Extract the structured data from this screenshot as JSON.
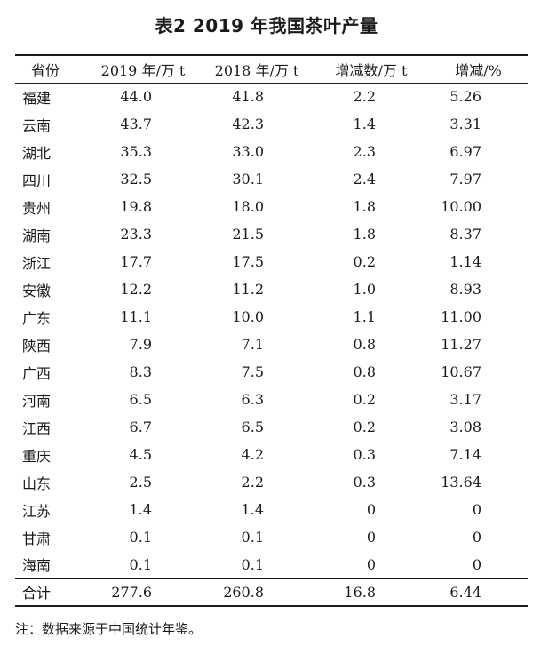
{
  "caption": "表2  2019 年我国茶叶产量",
  "headers": {
    "province": "省份",
    "y2019": "2019 年/万 t",
    "y2018": "2018 年/万 t",
    "diff": "增减数/万 t",
    "pct": "增减/%"
  },
  "rows": [
    {
      "province": "福建",
      "y2019": "44.0",
      "y2018": "41.8",
      "diff": "2.2",
      "pct": "5.26"
    },
    {
      "province": "云南",
      "y2019": "43.7",
      "y2018": "42.3",
      "diff": "1.4",
      "pct": "3.31"
    },
    {
      "province": "湖北",
      "y2019": "35.3",
      "y2018": "33.0",
      "diff": "2.3",
      "pct": "6.97"
    },
    {
      "province": "四川",
      "y2019": "32.5",
      "y2018": "30.1",
      "diff": "2.4",
      "pct": "7.97"
    },
    {
      "province": "贵州",
      "y2019": "19.8",
      "y2018": "18.0",
      "diff": "1.8",
      "pct": "10.00"
    },
    {
      "province": "湖南",
      "y2019": "23.3",
      "y2018": "21.5",
      "diff": "1.8",
      "pct": "8.37"
    },
    {
      "province": "浙江",
      "y2019": "17.7",
      "y2018": "17.5",
      "diff": "0.2",
      "pct": "1.14"
    },
    {
      "province": "安徽",
      "y2019": "12.2",
      "y2018": "11.2",
      "diff": "1.0",
      "pct": "8.93"
    },
    {
      "province": "广东",
      "y2019": "11.1",
      "y2018": "10.0",
      "diff": "1.1",
      "pct": "11.00"
    },
    {
      "province": "陕西",
      "y2019": "7.9",
      "y2018": "7.1",
      "diff": "0.8",
      "pct": "11.27"
    },
    {
      "province": "广西",
      "y2019": "8.3",
      "y2018": "7.5",
      "diff": "0.8",
      "pct": "10.67"
    },
    {
      "province": "河南",
      "y2019": "6.5",
      "y2018": "6.3",
      "diff": "0.2",
      "pct": "3.17"
    },
    {
      "province": "江西",
      "y2019": "6.7",
      "y2018": "6.5",
      "diff": "0.2",
      "pct": "3.08"
    },
    {
      "province": "重庆",
      "y2019": "4.5",
      "y2018": "4.2",
      "diff": "0.3",
      "pct": "7.14"
    },
    {
      "province": "山东",
      "y2019": "2.5",
      "y2018": "2.2",
      "diff": "0.3",
      "pct": "13.64"
    },
    {
      "province": "江苏",
      "y2019": "1.4",
      "y2018": "1.4",
      "diff": "0",
      "pct": "0"
    },
    {
      "province": "甘肃",
      "y2019": "0.1",
      "y2018": "0.1",
      "diff": "0",
      "pct": "0"
    },
    {
      "province": "海南",
      "y2019": "0.1",
      "y2018": "0.1",
      "diff": "0",
      "pct": "0"
    }
  ],
  "total": {
    "province": "合计",
    "y2019": "277.6",
    "y2018": "260.8",
    "diff": "16.8",
    "pct": "6.44"
  },
  "note": "注：数据来源于中国统计年鉴。"
}
